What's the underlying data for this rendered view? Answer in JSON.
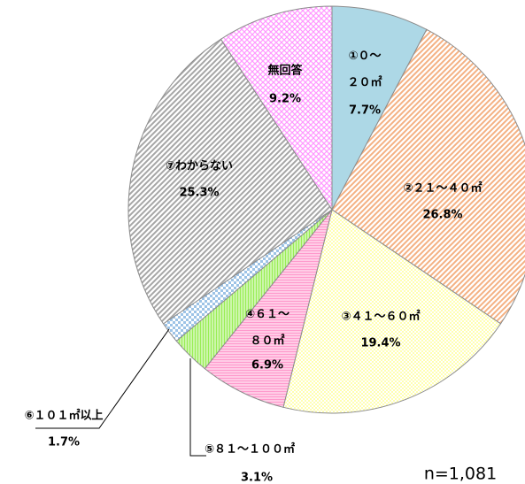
{
  "chart_data": {
    "type": "pie",
    "categories": [
      "①０～\n２０㎡",
      "②２１～４０㎡",
      "③４１～６０㎡",
      "④６１～\n８０㎡",
      "⑤８１～１００㎡",
      "⑥１０１㎡以上",
      "⑦わからない",
      "無回答"
    ],
    "values": [
      7.7,
      26.8,
      19.4,
      6.9,
      3.1,
      1.7,
      25.3,
      9.2
    ],
    "value_labels": [
      "7.7%",
      "26.8%",
      "19.4%",
      "6.9%",
      "3.1%",
      "1.7%",
      "25.3%",
      "9.2%"
    ],
    "colors": [
      "#add8e6",
      "#f4b183",
      "#ffff99",
      "#ff99cc",
      "#99ee55",
      "#9dc3e6",
      "#a6a6a6",
      "#ff99ff"
    ],
    "patterns": [
      "solid",
      "diagonal",
      "dots",
      "horizontal",
      "vertical",
      "checker",
      "diagonal",
      "crosshatch"
    ],
    "note": "n=1,081"
  }
}
